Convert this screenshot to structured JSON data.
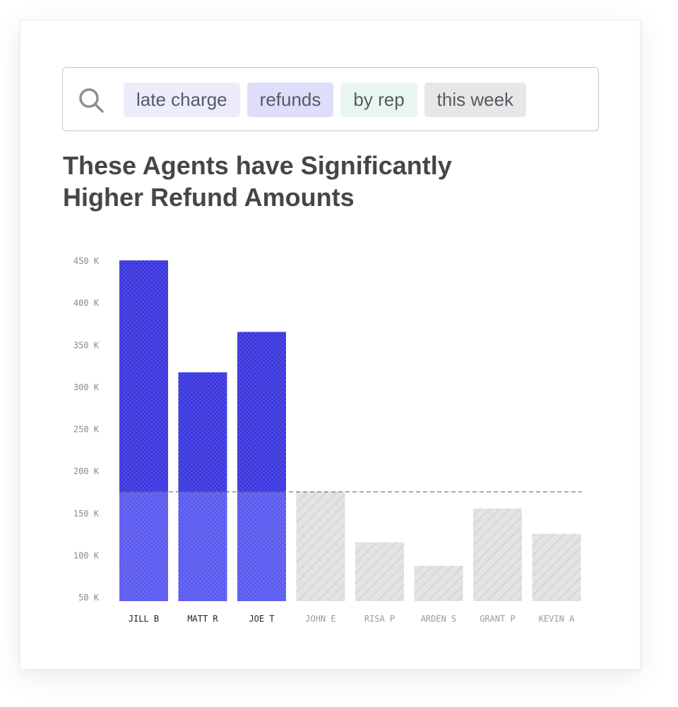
{
  "search": {
    "chips": [
      {
        "label": "late charge",
        "bg": "#ececfb"
      },
      {
        "label": "refunds",
        "bg": "#dedefa"
      },
      {
        "label": "by rep",
        "bg": "#e8f6ef"
      },
      {
        "label": "this week",
        "bg": "#e7e7e7"
      }
    ]
  },
  "colors": {
    "highlight": "#4a45ea",
    "highlight_light": "#5c5cf0",
    "baseline_bar": "#e3e3e3",
    "highlight_label": "#222222",
    "baseline_label": "#9a9a9a"
  },
  "chart_data": {
    "type": "bar",
    "title": "These Agents have Significantly Higher Refund Amounts",
    "categories": [
      "JILL B",
      "MATT R",
      "JOE T",
      "JOHN E",
      "RISA P",
      "ARDEN S",
      "GRANT P",
      "KEVIN A"
    ],
    "values": [
      455,
      322,
      370,
      180,
      120,
      92,
      160,
      130
    ],
    "highlighted": [
      true,
      true,
      true,
      false,
      false,
      false,
      false,
      false
    ],
    "threshold": 180,
    "ylim": [
      45,
      460
    ],
    "yticks": [
      50,
      100,
      150,
      200,
      250,
      300,
      350,
      400,
      450
    ],
    "ytick_labels": [
      "50 K",
      "100 K",
      "150 K",
      "200 K",
      "250 K",
      "300 K",
      "350 K",
      "400 K",
      "450 K"
    ],
    "xlabel": "",
    "ylabel": "",
    "grid": false
  }
}
